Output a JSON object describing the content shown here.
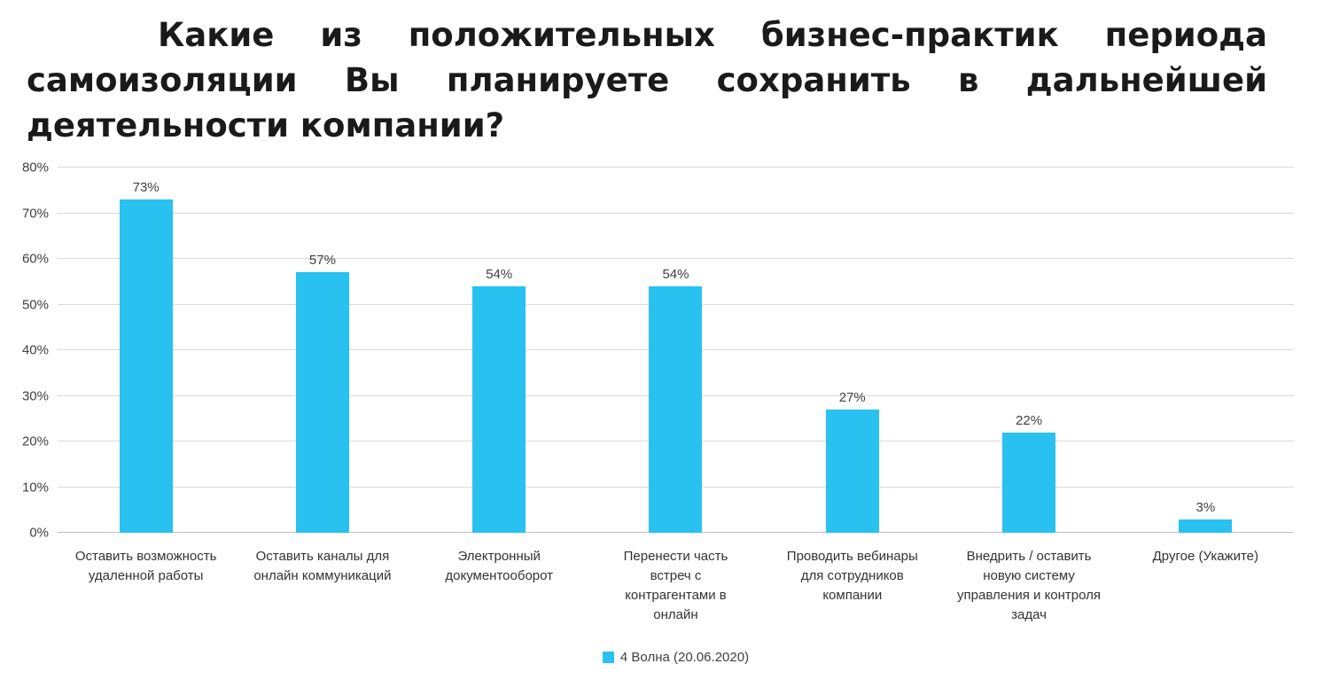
{
  "page": {
    "title_lines": [
      "Какие из положительных бизнес-практик периода",
      "самоизоляции Вы планируете сохранить в дальнейшей",
      "деятельности компании?"
    ]
  },
  "chart_data": {
    "type": "bar",
    "title": "Какие из положительных бизнес-практик периода самоизоляции Вы планируете сохранить в дальнейшей деятельности компании?",
    "categories": [
      "Оставить возможность удаленной работы",
      "Оставить каналы для онлайн коммуникаций",
      "Электронный документооборот",
      "Перенести часть встреч с контрагентами в онлайн",
      "Проводить вебинары для сотрудников компании",
      "Внедрить / оставить новую систему управления и контроля задач",
      "Другое (Укажите)"
    ],
    "values": [
      73,
      57,
      54,
      54,
      27,
      22,
      3
    ],
    "value_labels": [
      "73%",
      "57%",
      "54%",
      "54%",
      "27%",
      "22%",
      "3%"
    ],
    "xlabel": "",
    "ylabel": "",
    "ylim": [
      0,
      80
    ],
    "yticks": [
      0,
      10,
      20,
      30,
      40,
      50,
      60,
      70,
      80
    ],
    "ytick_labels": [
      "0%",
      "10%",
      "20%",
      "30%",
      "40%",
      "50%",
      "60%",
      "70%",
      "80%"
    ],
    "grid": true,
    "legend": {
      "label": "4 Волна (20.06.2020)",
      "position": "bottom-center"
    },
    "bar_color": "#29c1f0",
    "colors": {
      "gridline": "#d9d9d9",
      "axis_line": "#bfbfbf",
      "tick_text": "#404040",
      "title_text": "#1a1a1a"
    }
  }
}
